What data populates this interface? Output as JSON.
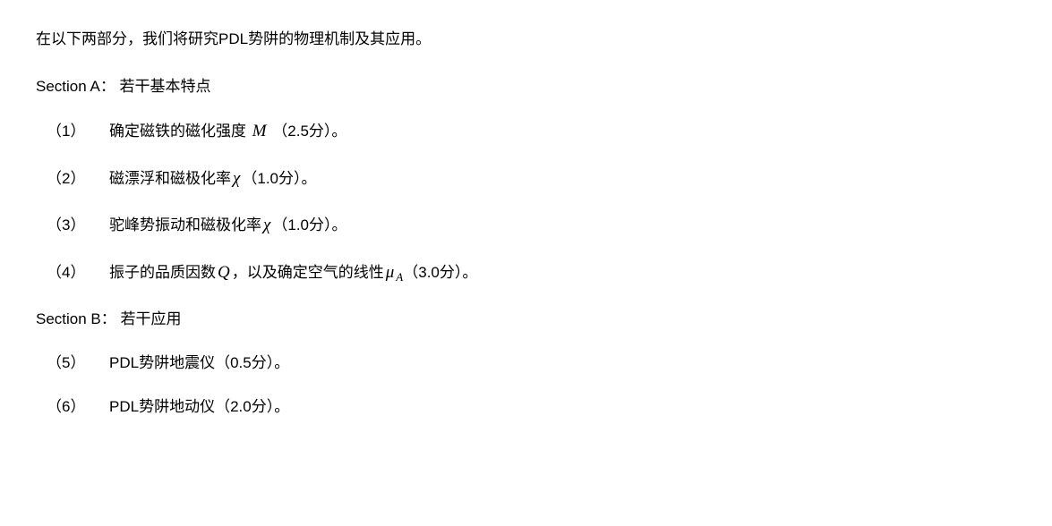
{
  "intro": "在以下两部分，我们将研究PDL势阱的物理机制及其应用。",
  "sectionA": {
    "title": "Section A： 若干基本特点",
    "items": [
      {
        "num": "（1）",
        "pre": "确定磁铁的磁化强度 ",
        "var": "M",
        "sub": "",
        "post": " （2.5分）。"
      },
      {
        "num": "（2）",
        "pre": "磁漂浮和磁极化率",
        "var": "χ",
        "sub": "",
        "post": "（1.0分）。"
      },
      {
        "num": "（3）",
        "pre": "驼峰势振动和磁极化率",
        "var": "χ",
        "sub": "",
        "post": "（1.0分）。"
      },
      {
        "num": "（4）",
        "pre": "振子的品质因数",
        "var": "Q",
        "sub": "",
        "mid": "，以及确定空气的线性",
        "var2": "μ",
        "sub2": "A",
        "post": "（3.0分）。"
      }
    ]
  },
  "sectionB": {
    "title": "Section B： 若干应用",
    "items": [
      {
        "num": "（5）",
        "pre": "PDL势阱地震仪（0.5分）。"
      },
      {
        "num": "（6）",
        "pre": " PDL势阱地动仪（2.0分）。"
      }
    ]
  }
}
